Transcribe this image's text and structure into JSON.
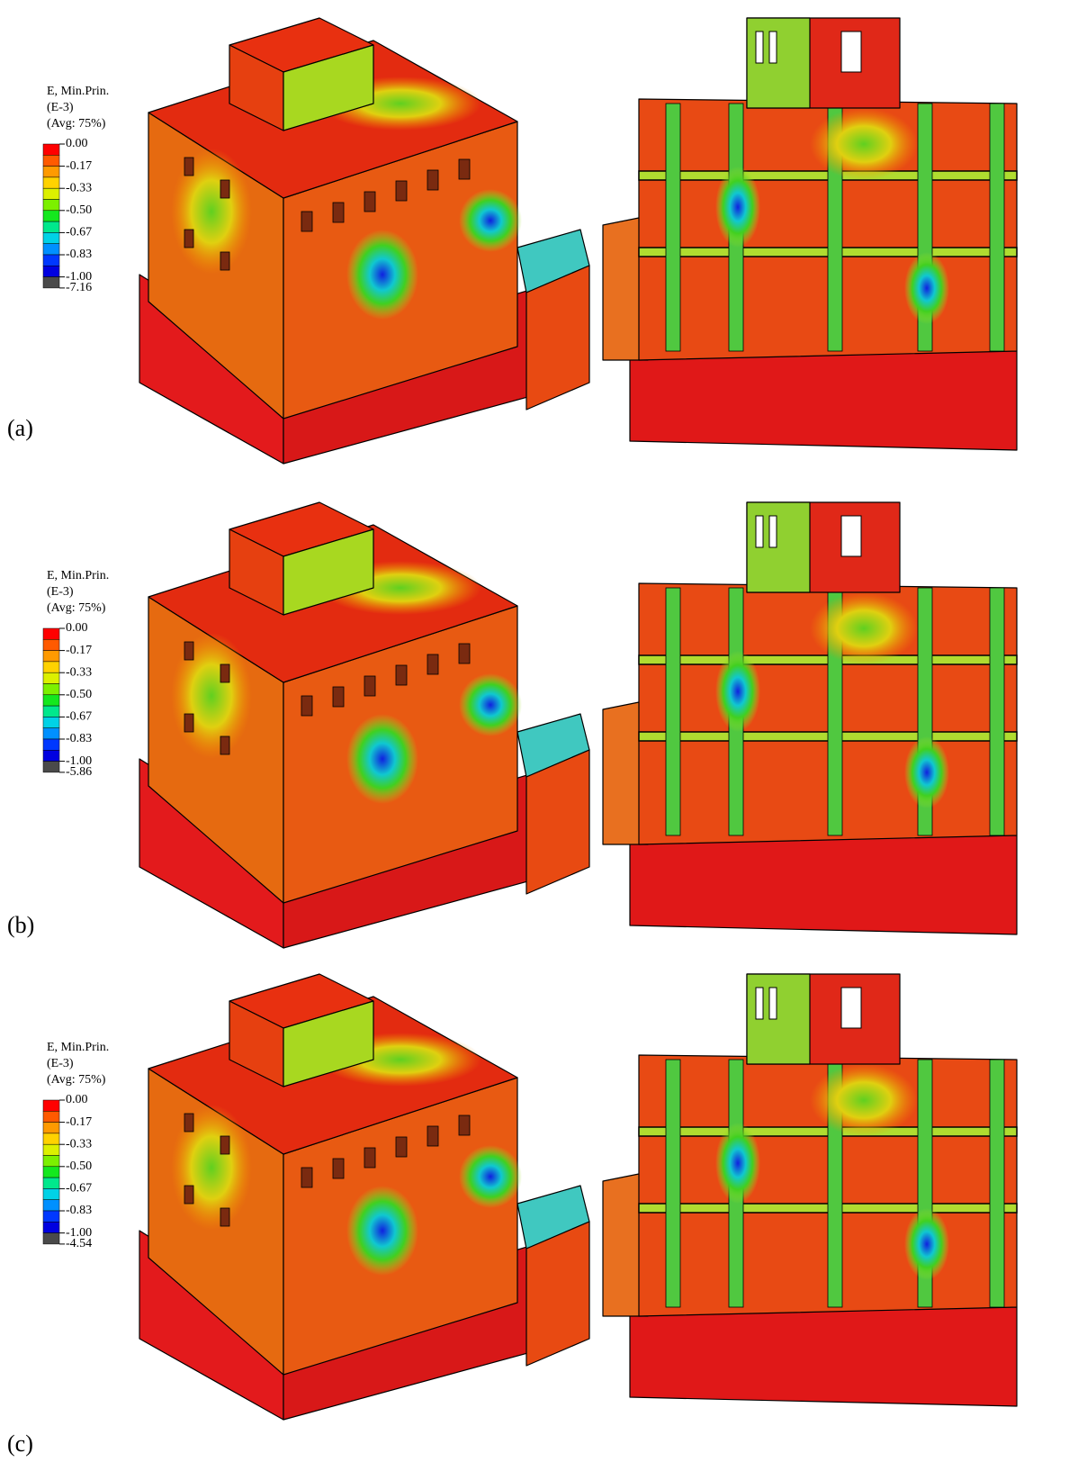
{
  "panels": [
    {
      "label": "(a)",
      "legend": {
        "title": [
          "E, Min.Prin.",
          "(E-3)",
          "(Avg: 75%)"
        ],
        "ticks": [
          "0.00",
          "-0.17",
          "-0.33",
          "-0.50",
          "-0.67",
          "-0.83",
          "-1.00",
          "-7.16"
        ]
      }
    },
    {
      "label": "(b)",
      "legend": {
        "title": [
          "E, Min.Prin.",
          "(E-3)",
          "(Avg: 75%)"
        ],
        "ticks": [
          "0.00",
          "-0.17",
          "-0.33",
          "-0.50",
          "-0.67",
          "-0.83",
          "-1.00",
          "-5.86"
        ]
      }
    },
    {
      "label": "(c)",
      "legend": {
        "title": [
          "E, Min.Prin.",
          "(E-3)",
          "(Avg: 75%)"
        ],
        "ticks": [
          "0.00",
          "-0.17",
          "-0.33",
          "-0.50",
          "-0.67",
          "-0.83",
          "-1.00",
          "-4.54"
        ]
      }
    }
  ]
}
